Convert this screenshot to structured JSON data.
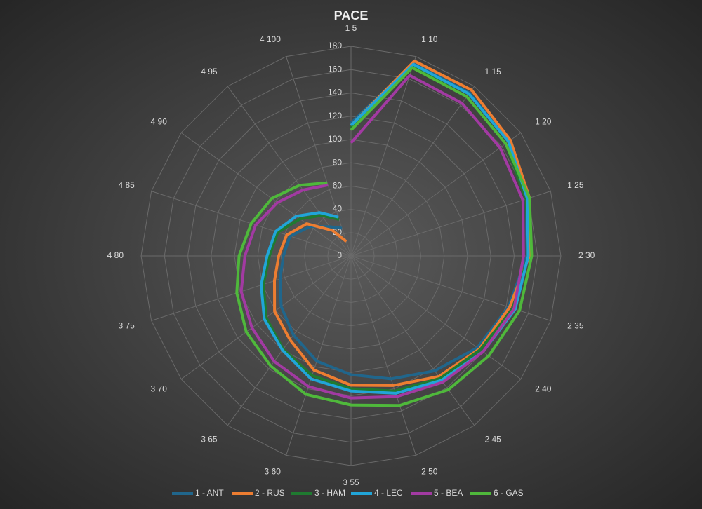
{
  "chart_data": {
    "type": "radar",
    "title": "PACE",
    "categories": [
      "1 5",
      "1 10",
      "1 15",
      "1 20",
      "1 25",
      "2 30",
      "2 35",
      "2 40",
      "2 45",
      "2 50",
      "3 55",
      "3 60",
      "3 65",
      "3 70",
      "3 75",
      "4 80",
      "4 85",
      "4 90",
      "4 95",
      "4 100"
    ],
    "ylim": [
      0,
      180
    ],
    "yticks": [
      0,
      20,
      40,
      60,
      80,
      100,
      120,
      140,
      160,
      180
    ],
    "grid": true,
    "legend": "bottom",
    "series": [
      {
        "name": "1 - ANT",
        "color": "#20668c",
        "values": [
          114,
          174,
          173,
          167,
          158,
          151,
          142,
          134,
          122,
          111,
          102,
          95,
          84,
          74,
          64,
          58,
          55,
          43,
          31,
          25
        ]
      },
      {
        "name": "2 - RUS",
        "color": "#ed7d31",
        "values": [
          112,
          176,
          176,
          169,
          161,
          153,
          143,
          136,
          128,
          117,
          111,
          103,
          89,
          81,
          69,
          62,
          58,
          47,
          27,
          13
        ]
      },
      {
        "name": "3 - HAM",
        "color": "#1f7a30",
        "values": [
          110,
          171,
          169,
          164,
          158,
          152,
          146,
          137,
          130,
          122,
          114,
          108,
          99,
          90,
          79,
          70,
          66,
          54,
          43,
          33
        ]
      },
      {
        "name": "4 - LEC",
        "color": "#21a5d8",
        "values": [
          112,
          173,
          172,
          167,
          159,
          152,
          148,
          140,
          132,
          124,
          116,
          111,
          100,
          92,
          81,
          72,
          68,
          58,
          46,
          35
        ]
      },
      {
        "name": "5 - BEA",
        "color": "#a23aa2",
        "values": [
          97,
          163,
          162,
          158,
          155,
          148,
          147,
          140,
          134,
          127,
          122,
          118,
          112,
          105,
          99,
          91,
          86,
          78,
          70,
          64
        ]
      },
      {
        "name": "6 - GAS",
        "color": "#4fb83b",
        "values": [
          108,
          170,
          169,
          164,
          161,
          155,
          152,
          146,
          142,
          135,
          128,
          125,
          117,
          111,
          103,
          96,
          90,
          84,
          75,
          66
        ]
      }
    ]
  }
}
